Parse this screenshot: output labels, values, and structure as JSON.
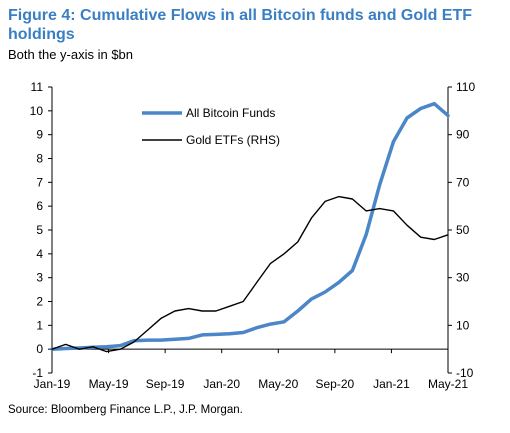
{
  "figure": {
    "title": "Figure 4: Cumulative Flows in all Bitcoin funds and Gold ETF holdings",
    "subtitle": "Both the y-axis in $bn",
    "source": "Source: Bloomberg Finance L.P., J.P. Morgan."
  },
  "chart_data": {
    "type": "line",
    "x_tick_labels": [
      "Jan-19",
      "May-19",
      "Sep-19",
      "Jan-20",
      "May-20",
      "Sep-20",
      "Jan-21",
      "May-21"
    ],
    "xlim": [
      "2019-01",
      "2021-06"
    ],
    "y_left": {
      "ticks": [
        -1,
        0,
        1,
        2,
        3,
        4,
        5,
        6,
        7,
        8,
        9,
        10,
        11
      ],
      "ylim": [
        -1,
        11
      ]
    },
    "y_right": {
      "ticks": [
        -10,
        10,
        30,
        50,
        70,
        90,
        110
      ],
      "ylim": [
        -10,
        110
      ]
    },
    "legend_position": "top-center",
    "grid": false,
    "series": [
      {
        "name": "All Bitcoin Funds",
        "axis": "left",
        "color": "#4a86c8",
        "points": [
          [
            "2019-01",
            0.0
          ],
          [
            "2019-02",
            0.03
          ],
          [
            "2019-03",
            0.05
          ],
          [
            "2019-04",
            0.08
          ],
          [
            "2019-05",
            0.1
          ],
          [
            "2019-06",
            0.15
          ],
          [
            "2019-07",
            0.35
          ],
          [
            "2019-08",
            0.38
          ],
          [
            "2019-09",
            0.38
          ],
          [
            "2019-10",
            0.42
          ],
          [
            "2019-11",
            0.45
          ],
          [
            "2019-12",
            0.6
          ],
          [
            "2020-01",
            0.62
          ],
          [
            "2020-02",
            0.65
          ],
          [
            "2020-03",
            0.7
          ],
          [
            "2020-04",
            0.9
          ],
          [
            "2020-05",
            1.05
          ],
          [
            "2020-06",
            1.15
          ],
          [
            "2020-07",
            1.6
          ],
          [
            "2020-08",
            2.1
          ],
          [
            "2020-09",
            2.4
          ],
          [
            "2020-10",
            2.8
          ],
          [
            "2020-11",
            3.3
          ],
          [
            "2020-12",
            4.8
          ],
          [
            "2021-01",
            6.9
          ],
          [
            "2021-02",
            8.7
          ],
          [
            "2021-03",
            9.7
          ],
          [
            "2021-04",
            10.1
          ],
          [
            "2021-05",
            10.3
          ],
          [
            "2021-06",
            9.8
          ]
        ]
      },
      {
        "name": "Gold ETFs (RHS)",
        "axis": "right",
        "color": "#000000",
        "points": [
          [
            "2019-01",
            0
          ],
          [
            "2019-02",
            2
          ],
          [
            "2019-03",
            0
          ],
          [
            "2019-04",
            1
          ],
          [
            "2019-05",
            -1
          ],
          [
            "2019-06",
            0
          ],
          [
            "2019-07",
            3
          ],
          [
            "2019-08",
            8
          ],
          [
            "2019-09",
            13
          ],
          [
            "2019-10",
            16
          ],
          [
            "2019-11",
            17
          ],
          [
            "2019-12",
            16
          ],
          [
            "2020-01",
            16
          ],
          [
            "2020-02",
            18
          ],
          [
            "2020-03",
            20
          ],
          [
            "2020-04",
            28
          ],
          [
            "2020-05",
            36
          ],
          [
            "2020-06",
            40
          ],
          [
            "2020-07",
            45
          ],
          [
            "2020-08",
            55
          ],
          [
            "2020-09",
            62
          ],
          [
            "2020-10",
            64
          ],
          [
            "2020-11",
            63
          ],
          [
            "2020-12",
            58
          ],
          [
            "2021-01",
            59
          ],
          [
            "2021-02",
            58
          ],
          [
            "2021-03",
            52
          ],
          [
            "2021-04",
            47
          ],
          [
            "2021-05",
            46
          ],
          [
            "2021-06",
            48
          ]
        ]
      }
    ]
  }
}
